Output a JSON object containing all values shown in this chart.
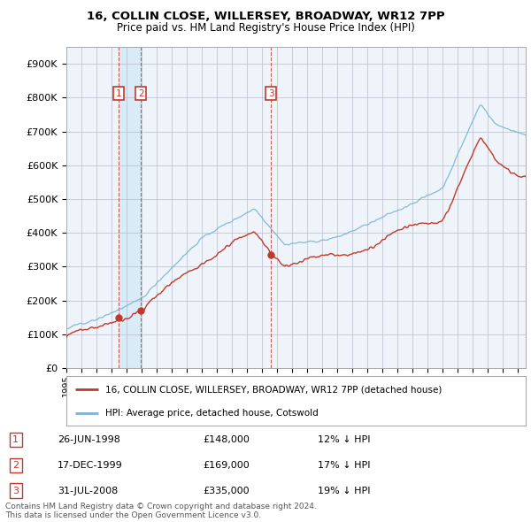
{
  "title": "16, COLLIN CLOSE, WILLERSEY, BROADWAY, WR12 7PP",
  "subtitle": "Price paid vs. HM Land Registry's House Price Index (HPI)",
  "xlim_start": 1995.0,
  "xlim_end": 2025.5,
  "ylim_min": 0,
  "ylim_max": 950000,
  "yticks": [
    0,
    100000,
    200000,
    300000,
    400000,
    500000,
    600000,
    700000,
    800000,
    900000
  ],
  "ytick_labels": [
    "£0",
    "£100K",
    "£200K",
    "£300K",
    "£400K",
    "£500K",
    "£600K",
    "£700K",
    "£800K",
    "£900K"
  ],
  "hpi_color": "#7ab3d4",
  "hpi_fill_color": "#d0e8f5",
  "price_color": "#c0392b",
  "transactions": [
    {
      "num": 1,
      "date_label": "26-JUN-1998",
      "date_x": 1998.48,
      "price": 148000,
      "hpi_pct": "12% ↓ HPI"
    },
    {
      "num": 2,
      "date_label": "17-DEC-1999",
      "date_x": 1999.96,
      "price": 169000,
      "hpi_pct": "17% ↓ HPI"
    },
    {
      "num": 3,
      "date_label": "31-JUL-2008",
      "date_x": 2008.58,
      "price": 335000,
      "hpi_pct": "19% ↓ HPI"
    }
  ],
  "legend_property_label": "16, COLLIN CLOSE, WILLERSEY, BROADWAY, WR12 7PP (detached house)",
  "legend_hpi_label": "HPI: Average price, detached house, Cotswold",
  "footnote": "Contains HM Land Registry data © Crown copyright and database right 2024.\nThis data is licensed under the Open Government Licence v3.0.",
  "background_color": "#ffffff",
  "chart_bg_color": "#eef4fa",
  "grid_color": "#bbbbcc"
}
